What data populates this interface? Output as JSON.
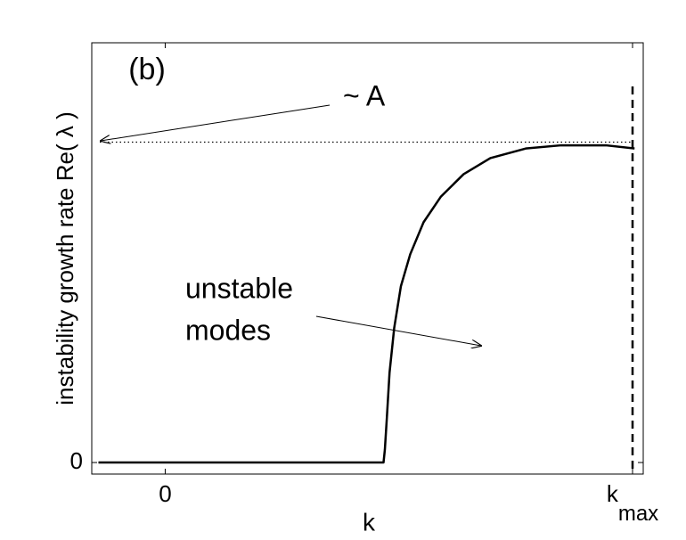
{
  "chart_data": {
    "type": "line",
    "panel_label": "(b)",
    "y_label": "instability growth rate  Re( λ )",
    "x_label": "k",
    "annotations": [
      "~ A",
      "unstable",
      "modes"
    ],
    "xlim": [
      -1.1,
      7.16
    ],
    "ylim": [
      -0.036,
      1.31
    ],
    "xticks": [
      0,
      {
        "value": 7,
        "label": "k",
        "subscript": "max"
      }
    ],
    "yticks": [
      0
    ],
    "reference_y": 1,
    "reference_x": 7,
    "series": [
      {
        "color": "#000000",
        "x": [
          -1.0,
          3.27,
          3.29,
          3.32,
          3.36,
          3.43,
          3.53,
          3.67,
          3.87,
          4.13,
          4.47,
          4.87,
          5.4,
          5.93,
          6.6,
          7.03
        ],
        "values": [
          0,
          0,
          0.04,
          0.14,
          0.28,
          0.42,
          0.55,
          0.65,
          0.75,
          0.83,
          0.9,
          0.95,
          0.98,
          0.99,
          0.99,
          0.98
        ]
      }
    ]
  }
}
